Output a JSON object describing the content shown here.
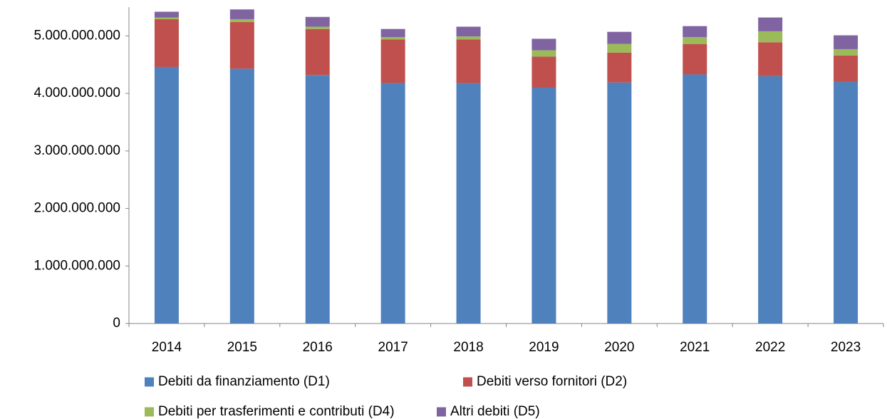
{
  "chart_data": {
    "type": "stacked_bar",
    "categories": [
      "2014",
      "2015",
      "2016",
      "2017",
      "2018",
      "2019",
      "2020",
      "2021",
      "2022",
      "2023"
    ],
    "series": [
      {
        "name": "Debiti da finanziamento (D1)",
        "color": "#4f81bd",
        "values": [
          4460000000,
          4430000000,
          4320000000,
          4180000000,
          4180000000,
          4100000000,
          4190000000,
          4330000000,
          4300000000,
          4200000000
        ]
      },
      {
        "name": "Debiti verso fornitori (D2)",
        "color": "#c0504d",
        "values": [
          830000000,
          810000000,
          800000000,
          760000000,
          760000000,
          540000000,
          520000000,
          530000000,
          590000000,
          460000000
        ]
      },
      {
        "name": "Debiti per trasferimenti e contributi (D4)",
        "color": "#9bbb59",
        "values": [
          30000000,
          50000000,
          40000000,
          40000000,
          50000000,
          110000000,
          150000000,
          120000000,
          190000000,
          110000000
        ]
      },
      {
        "name": "Altri debiti (D5)",
        "color": "#8064a2",
        "values": [
          100000000,
          170000000,
          170000000,
          140000000,
          170000000,
          200000000,
          210000000,
          190000000,
          240000000,
          240000000
        ]
      }
    ],
    "ylim": [
      0,
      5500000000
    ],
    "yticks": [
      0,
      {
        "value": 1000000000,
        "label": "1.000.000.000"
      },
      {
        "value": 2000000000,
        "label": "2.000.000.000"
      },
      {
        "value": 3000000000,
        "label": "3.000.000.000"
      },
      {
        "value": 4000000000,
        "label": "4.000.000.000"
      },
      {
        "value": 5000000000,
        "label": "5.000.000.000"
      }
    ],
    "grid": false
  }
}
